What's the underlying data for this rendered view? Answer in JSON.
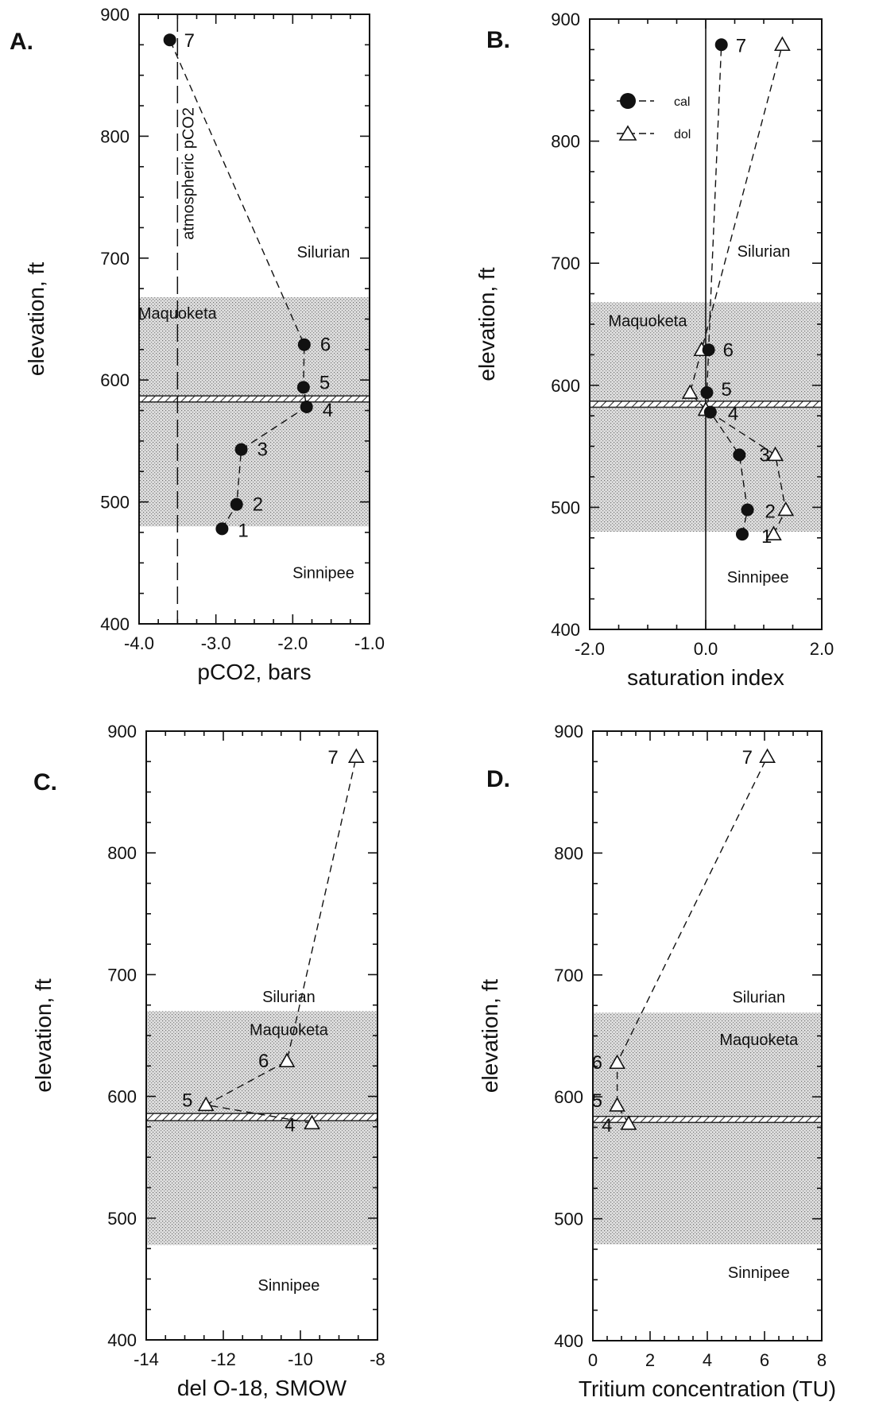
{
  "chart_data": [
    {
      "type": "scatter",
      "panel_label": "A.",
      "xlabel": "pCO2, bars",
      "ylabel": "elevation, ft",
      "xlim": [
        -4.0,
        -1.0
      ],
      "ylim": [
        400,
        900
      ],
      "x_ticks": [
        -4.0,
        -3.0,
        -2.0,
        -1.0
      ],
      "x_tick_labels": [
        "-4.0",
        "-3.0",
        "-2.0",
        "-1.0"
      ],
      "y_ticks": [
        400,
        500,
        600,
        700,
        800,
        900
      ],
      "y_tick_labels": [
        "400",
        "500",
        "600",
        "700",
        "800",
        "900"
      ],
      "zones": [
        {
          "name": "Maquoketa",
          "from": 480,
          "to": 668,
          "shaded": true
        },
        {
          "name": "",
          "from": 582,
          "to": 587,
          "hatched": true
        }
      ],
      "zone_labels": [
        {
          "text": "Silurian",
          "x": -1.6,
          "y": 705
        },
        {
          "text": "Maquoketa",
          "x": -3.5,
          "y": 655
        },
        {
          "text": "Sinnipee",
          "x": -1.6,
          "y": 442
        }
      ],
      "reference_line": {
        "x": -3.5,
        "label": "atmospheric pCO2"
      },
      "series": [
        {
          "marker": "filled-circle",
          "points": [
            {
              "label": "1",
              "x": -2.92,
              "y": 478
            },
            {
              "label": "2",
              "x": -2.73,
              "y": 498
            },
            {
              "label": "3",
              "x": -2.67,
              "y": 543
            },
            {
              "label": "4",
              "x": -1.82,
              "y": 578
            },
            {
              "label": "5",
              "x": -1.86,
              "y": 594
            },
            {
              "label": "6",
              "x": -1.85,
              "y": 629
            },
            {
              "label": "7",
              "x": -3.6,
              "y": 879
            }
          ]
        }
      ]
    },
    {
      "type": "scatter",
      "panel_label": "B.",
      "xlabel": "saturation index",
      "ylabel": "elevation, ft",
      "xlim": [
        -2.0,
        2.0
      ],
      "ylim": [
        400,
        900
      ],
      "x_ticks": [
        -2.0,
        0.0,
        2.0
      ],
      "x_tick_labels": [
        "-2.0",
        "0.0",
        "2.0"
      ],
      "y_ticks": [
        400,
        500,
        600,
        700,
        800,
        900
      ],
      "y_tick_labels": [
        "400",
        "500",
        "600",
        "700",
        "800",
        "900"
      ],
      "zones": [
        {
          "name": "Maquoketa",
          "from": 480,
          "to": 668,
          "shaded": true
        },
        {
          "name": "",
          "from": 582,
          "to": 587,
          "hatched": true
        }
      ],
      "zone_labels": [
        {
          "text": "Silurian",
          "x": 1.0,
          "y": 710
        },
        {
          "text": "Maquoketa",
          "x": -1.0,
          "y": 653
        },
        {
          "text": "Sinnipee",
          "x": 0.9,
          "y": 443
        }
      ],
      "zero_line": 0.0,
      "legend": {
        "placement": "top-left",
        "entries": [
          "cal",
          "dol"
        ]
      },
      "series": [
        {
          "name": "cal",
          "marker": "filled-circle",
          "points": [
            {
              "label": "1",
              "x": 0.63,
              "y": 478
            },
            {
              "label": "2",
              "x": 0.72,
              "y": 498
            },
            {
              "label": "3",
              "x": 0.58,
              "y": 543
            },
            {
              "label": "4",
              "x": 0.08,
              "y": 578
            },
            {
              "label": "5",
              "x": 0.02,
              "y": 594
            },
            {
              "label": "6",
              "x": 0.05,
              "y": 629
            },
            {
              "label": "7",
              "x": 0.27,
              "y": 879
            }
          ]
        },
        {
          "name": "dol",
          "marker": "open-triangle",
          "points": [
            {
              "x": 1.17,
              "y": 478
            },
            {
              "x": 1.38,
              "y": 498
            },
            {
              "x": 1.2,
              "y": 543
            },
            {
              "x": 0.0,
              "y": 580
            },
            {
              "x": -0.27,
              "y": 594
            },
            {
              "x": -0.07,
              "y": 629
            },
            {
              "x": 1.32,
              "y": 879
            }
          ]
        }
      ]
    },
    {
      "type": "scatter",
      "panel_label": "C.",
      "xlabel": "del O-18, SMOW",
      "ylabel": "elevation, ft",
      "xlim": [
        -14,
        -8
      ],
      "ylim": [
        400,
        900
      ],
      "x_ticks": [
        -14,
        -12,
        -10,
        -8
      ],
      "x_tick_labels": [
        "-14",
        "-12",
        "-10",
        "-8"
      ],
      "y_ticks": [
        400,
        500,
        600,
        700,
        800,
        900
      ],
      "y_tick_labels": [
        "400",
        "500",
        "600",
        "700",
        "800",
        "900"
      ],
      "zones": [
        {
          "name": "Maquoketa",
          "from": 478,
          "to": 670,
          "shaded": true
        },
        {
          "name": "",
          "from": 580,
          "to": 586,
          "hatched": true
        }
      ],
      "zone_labels": [
        {
          "text": "Silurian",
          "x": -10.3,
          "y": 682
        },
        {
          "text": "Maquoketa",
          "x": -10.3,
          "y": 655
        },
        {
          "text": "Sinnipee",
          "x": -10.3,
          "y": 445
        }
      ],
      "series": [
        {
          "marker": "open-triangle",
          "points": [
            {
              "label": "4",
              "x": -9.7,
              "y": 578
            },
            {
              "label": "5",
              "x": -12.45,
              "y": 593
            },
            {
              "label": "6",
              "x": -10.35,
              "y": 629
            },
            {
              "label": "7",
              "x": -8.55,
              "y": 879
            }
          ]
        }
      ]
    },
    {
      "type": "scatter",
      "panel_label": "D.",
      "xlabel": "Tritium concentration (TU)",
      "ylabel": "elevation, ft",
      "xlim": [
        0,
        8
      ],
      "ylim": [
        400,
        900
      ],
      "x_ticks": [
        0,
        2,
        4,
        6,
        8
      ],
      "x_tick_labels": [
        "0",
        "2",
        "4",
        "6",
        "8"
      ],
      "y_ticks": [
        400,
        500,
        600,
        700,
        800,
        900
      ],
      "y_tick_labels": [
        "400",
        "500",
        "600",
        "700",
        "800",
        "900"
      ],
      "zones": [
        {
          "name": "Maquoketa",
          "from": 479,
          "to": 669,
          "shaded": true
        },
        {
          "name": "",
          "from": 579,
          "to": 584,
          "hatched": true
        }
      ],
      "zone_labels": [
        {
          "text": "Silurian",
          "x": 5.8,
          "y": 682
        },
        {
          "text": "Maquoketa",
          "x": 5.8,
          "y": 647
        },
        {
          "text": "Sinnipee",
          "x": 5.8,
          "y": 456
        }
      ],
      "series": [
        {
          "marker": "open-triangle",
          "points": [
            {
              "label": "4",
              "x": 1.25,
              "y": 578
            },
            {
              "label": "5",
              "x": 0.85,
              "y": 593
            },
            {
              "label": "6",
              "x": 0.85,
              "y": 628
            },
            {
              "label": "7",
              "x": 6.1,
              "y": 879
            }
          ]
        }
      ]
    }
  ]
}
